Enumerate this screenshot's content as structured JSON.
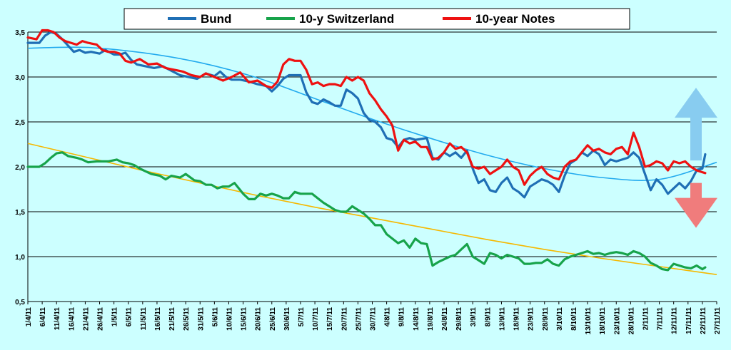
{
  "colors": {
    "background": "#CCFFFF",
    "bund": "#1F6FB5",
    "switzerland": "#17A34A",
    "notes": "#EE1111",
    "trend_bund": "#22AAEE",
    "trend_switzerland": "#F5B800",
    "arrow_up": "#88CCF0",
    "arrow_down": "#F07C7C",
    "grid": "#000000"
  },
  "chart_data": {
    "type": "line",
    "title": "",
    "xlabel": "",
    "ylabel": "",
    "ylim": [
      0.5,
      3.5
    ],
    "xlim": [
      "2011-04-01",
      "2011-11-27"
    ],
    "yticks": [
      "0,5",
      "1,0",
      "1,5",
      "2,0",
      "2,5",
      "3,0",
      "3,5"
    ],
    "ytick_values": [
      0.5,
      1.0,
      1.5,
      2.0,
      2.5,
      3.0,
      3.5
    ],
    "xtick_labels": [
      "1/4/11",
      "6/4/11",
      "11/4/11",
      "16/4/11",
      "21/4/11",
      "26/4/11",
      "1/5/11",
      "6/5/11",
      "11/5/11",
      "16/5/11",
      "21/5/11",
      "26/5/11",
      "31/5/11",
      "5/6/11",
      "10/6/11",
      "15/6/11",
      "20/6/11",
      "25/6/11",
      "30/6/11",
      "5/7/11",
      "10/7/11",
      "15/7/11",
      "20/7/11",
      "25/7/11",
      "30/7/11",
      "4/8/11",
      "9/8/11",
      "14/8/11",
      "19/8/11",
      "24/8/11",
      "29/8/11",
      "3/9/11",
      "8/9/11",
      "13/9/11",
      "18/9/11",
      "23/9/11",
      "28/9/11",
      "3/10/11",
      "8/10/11",
      "13/10/11",
      "18/10/11",
      "23/10/11",
      "28/10/11",
      "2/11/11",
      "7/11/11",
      "12/11/11",
      "17/11/11",
      "22/11/11",
      "27/11/11"
    ],
    "xtick_dates": [
      "2011-04-01",
      "2011-04-06",
      "2011-04-11",
      "2011-04-16",
      "2011-04-21",
      "2011-04-26",
      "2011-05-01",
      "2011-05-06",
      "2011-05-11",
      "2011-05-16",
      "2011-05-21",
      "2011-05-26",
      "2011-05-31",
      "2011-06-05",
      "2011-06-10",
      "2011-06-15",
      "2011-06-20",
      "2011-06-25",
      "2011-06-30",
      "2011-07-05",
      "2011-07-10",
      "2011-07-15",
      "2011-07-20",
      "2011-07-25",
      "2011-07-30",
      "2011-08-04",
      "2011-08-09",
      "2011-08-14",
      "2011-08-19",
      "2011-08-24",
      "2011-08-29",
      "2011-09-03",
      "2011-09-08",
      "2011-09-13",
      "2011-09-18",
      "2011-09-23",
      "2011-09-28",
      "2011-10-03",
      "2011-10-08",
      "2011-10-13",
      "2011-10-18",
      "2011-10-23",
      "2011-10-28",
      "2011-11-02",
      "2011-11-07",
      "2011-11-12",
      "2011-11-17",
      "2011-11-22",
      "2011-11-27"
    ],
    "grid": "horizontal",
    "legend_position": "top-center",
    "series": [
      {
        "name": "Bund",
        "color": "#1F6FB5",
        "x": [
          "2011-04-01",
          "2011-04-05",
          "2011-04-07",
          "2011-04-09",
          "2011-04-11",
          "2011-04-13",
          "2011-04-15",
          "2011-04-17",
          "2011-04-19",
          "2011-04-21",
          "2011-04-23",
          "2011-04-26",
          "2011-04-28",
          "2011-05-01",
          "2011-05-03",
          "2011-05-05",
          "2011-05-07",
          "2011-05-09",
          "2011-05-12",
          "2011-05-15",
          "2011-05-18",
          "2011-05-21",
          "2011-05-24",
          "2011-05-27",
          "2011-05-30",
          "2011-06-02",
          "2011-06-05",
          "2011-06-07",
          "2011-06-09",
          "2011-06-11",
          "2011-06-14",
          "2011-06-17",
          "2011-06-20",
          "2011-06-23",
          "2011-06-25",
          "2011-06-27",
          "2011-06-29",
          "2011-07-01",
          "2011-07-03",
          "2011-07-05",
          "2011-07-07",
          "2011-07-09",
          "2011-07-11",
          "2011-07-13",
          "2011-07-15",
          "2011-07-17",
          "2011-07-19",
          "2011-07-21",
          "2011-07-23",
          "2011-07-25",
          "2011-07-27",
          "2011-07-29",
          "2011-07-31",
          "2011-08-02",
          "2011-08-04",
          "2011-08-06",
          "2011-08-08",
          "2011-08-10",
          "2011-08-12",
          "2011-08-14",
          "2011-08-16",
          "2011-08-18",
          "2011-08-20",
          "2011-08-22",
          "2011-08-24",
          "2011-08-26",
          "2011-08-28",
          "2011-08-30",
          "2011-09-01",
          "2011-09-03",
          "2011-09-05",
          "2011-09-07",
          "2011-09-09",
          "2011-09-11",
          "2011-09-13",
          "2011-09-15",
          "2011-09-17",
          "2011-09-19",
          "2011-09-21",
          "2011-09-23",
          "2011-09-25",
          "2011-09-27",
          "2011-09-29",
          "2011-10-01",
          "2011-10-03",
          "2011-10-05",
          "2011-10-07",
          "2011-10-09",
          "2011-10-11",
          "2011-10-13",
          "2011-10-15",
          "2011-10-17",
          "2011-10-19",
          "2011-10-21",
          "2011-10-23",
          "2011-10-25",
          "2011-10-27",
          "2011-10-29",
          "2011-10-31",
          "2011-11-02",
          "2011-11-04",
          "2011-11-06",
          "2011-11-08",
          "2011-11-10",
          "2011-11-12",
          "2011-11-14",
          "2011-11-16",
          "2011-11-18",
          "2011-11-20",
          "2011-11-22",
          "2011-11-23"
        ],
        "values": [
          3.38,
          3.38,
          3.46,
          3.5,
          3.48,
          3.42,
          3.35,
          3.28,
          3.3,
          3.27,
          3.28,
          3.26,
          3.3,
          3.25,
          3.25,
          3.27,
          3.19,
          3.14,
          3.12,
          3.1,
          3.12,
          3.07,
          3.02,
          3.0,
          2.98,
          3.04,
          3.01,
          3.06,
          3.0,
          2.97,
          2.97,
          2.95,
          2.92,
          2.9,
          2.84,
          2.9,
          2.98,
          3.02,
          3.02,
          3.02,
          2.83,
          2.72,
          2.7,
          2.75,
          2.72,
          2.68,
          2.68,
          2.86,
          2.82,
          2.76,
          2.6,
          2.52,
          2.5,
          2.44,
          2.32,
          2.3,
          2.22,
          2.3,
          2.32,
          2.3,
          2.31,
          2.32,
          2.1,
          2.08,
          2.16,
          2.12,
          2.16,
          2.1,
          2.18,
          1.98,
          1.82,
          1.86,
          1.74,
          1.72,
          1.82,
          1.88,
          1.76,
          1.72,
          1.66,
          1.78,
          1.82,
          1.86,
          1.84,
          1.8,
          1.72,
          1.9,
          2.04,
          2.08,
          2.16,
          2.12,
          2.18,
          2.14,
          2.02,
          2.08,
          2.06,
          2.08,
          2.1,
          2.16,
          2.1,
          1.92,
          1.74,
          1.86,
          1.8,
          1.7,
          1.76,
          1.82,
          1.76,
          1.84,
          1.96,
          1.98,
          2.14
        ]
      },
      {
        "name": "10-y Switzerland",
        "color": "#17A34A",
        "x": [
          "2011-04-01",
          "2011-04-05",
          "2011-04-07",
          "2011-04-09",
          "2011-04-11",
          "2011-04-13",
          "2011-04-15",
          "2011-04-18",
          "2011-04-20",
          "2011-04-22",
          "2011-04-25",
          "2011-04-27",
          "2011-04-29",
          "2011-05-02",
          "2011-05-04",
          "2011-05-06",
          "2011-05-08",
          "2011-05-10",
          "2011-05-12",
          "2011-05-14",
          "2011-05-17",
          "2011-05-19",
          "2011-05-21",
          "2011-05-24",
          "2011-05-26",
          "2011-05-29",
          "2011-05-31",
          "2011-06-02",
          "2011-06-04",
          "2011-06-06",
          "2011-06-08",
          "2011-06-10",
          "2011-06-12",
          "2011-06-15",
          "2011-06-17",
          "2011-06-19",
          "2011-06-21",
          "2011-06-23",
          "2011-06-25",
          "2011-06-27",
          "2011-06-29",
          "2011-07-01",
          "2011-07-03",
          "2011-07-05",
          "2011-07-07",
          "2011-07-09",
          "2011-07-11",
          "2011-07-13",
          "2011-07-15",
          "2011-07-17",
          "2011-07-19",
          "2011-07-21",
          "2011-07-23",
          "2011-07-25",
          "2011-07-27",
          "2011-07-29",
          "2011-07-31",
          "2011-08-02",
          "2011-08-04",
          "2011-08-06",
          "2011-08-08",
          "2011-08-10",
          "2011-08-12",
          "2011-08-14",
          "2011-08-16",
          "2011-08-18",
          "2011-08-20",
          "2011-08-22",
          "2011-08-24",
          "2011-08-26",
          "2011-08-28",
          "2011-08-30",
          "2011-09-01",
          "2011-09-03",
          "2011-09-05",
          "2011-09-07",
          "2011-09-09",
          "2011-09-11",
          "2011-09-13",
          "2011-09-15",
          "2011-09-17",
          "2011-09-19",
          "2011-09-21",
          "2011-09-23",
          "2011-09-25",
          "2011-09-27",
          "2011-09-29",
          "2011-10-01",
          "2011-10-03",
          "2011-10-05",
          "2011-10-07",
          "2011-10-09",
          "2011-10-11",
          "2011-10-13",
          "2011-10-15",
          "2011-10-17",
          "2011-10-19",
          "2011-10-21",
          "2011-10-23",
          "2011-10-25",
          "2011-10-27",
          "2011-10-29",
          "2011-10-31",
          "2011-11-02",
          "2011-11-04",
          "2011-11-06",
          "2011-11-08",
          "2011-11-10",
          "2011-11-12",
          "2011-11-14",
          "2011-11-16",
          "2011-11-18",
          "2011-11-20",
          "2011-11-22",
          "2011-11-23"
        ],
        "values": [
          2.0,
          2.0,
          2.04,
          2.1,
          2.15,
          2.16,
          2.12,
          2.1,
          2.08,
          2.05,
          2.06,
          2.06,
          2.06,
          2.08,
          2.05,
          2.04,
          2.02,
          1.98,
          1.95,
          1.92,
          1.9,
          1.86,
          1.9,
          1.88,
          1.92,
          1.85,
          1.84,
          1.8,
          1.8,
          1.76,
          1.78,
          1.78,
          1.82,
          1.7,
          1.64,
          1.64,
          1.7,
          1.68,
          1.7,
          1.68,
          1.65,
          1.65,
          1.72,
          1.7,
          1.7,
          1.7,
          1.65,
          1.6,
          1.56,
          1.52,
          1.5,
          1.5,
          1.56,
          1.52,
          1.48,
          1.42,
          1.35,
          1.35,
          1.25,
          1.2,
          1.15,
          1.18,
          1.1,
          1.2,
          1.15,
          1.14,
          0.9,
          0.94,
          0.97,
          1.0,
          1.02,
          1.08,
          1.14,
          1.0,
          0.96,
          0.92,
          1.04,
          1.02,
          0.98,
          1.02,
          1.0,
          0.98,
          0.92,
          0.92,
          0.93,
          0.93,
          0.97,
          0.92,
          0.9,
          0.97,
          1.0,
          1.02,
          1.04,
          1.06,
          1.03,
          1.04,
          1.02,
          1.04,
          1.05,
          1.04,
          1.02,
          1.06,
          1.04,
          1.0,
          0.93,
          0.9,
          0.86,
          0.85,
          0.92,
          0.9,
          0.88,
          0.87,
          0.9,
          0.86,
          0.88
        ]
      },
      {
        "name": "10-year Notes",
        "color": "#EE1111",
        "x": [
          "2011-04-01",
          "2011-04-04",
          "2011-04-06",
          "2011-04-08",
          "2011-04-10",
          "2011-04-12",
          "2011-04-14",
          "2011-04-16",
          "2011-04-18",
          "2011-04-20",
          "2011-04-22",
          "2011-04-25",
          "2011-04-27",
          "2011-04-29",
          "2011-05-01",
          "2011-05-03",
          "2011-05-05",
          "2011-05-07",
          "2011-05-10",
          "2011-05-13",
          "2011-05-16",
          "2011-05-19",
          "2011-05-22",
          "2011-05-25",
          "2011-05-28",
          "2011-05-31",
          "2011-06-02",
          "2011-06-05",
          "2011-06-08",
          "2011-06-11",
          "2011-06-14",
          "2011-06-17",
          "2011-06-20",
          "2011-06-23",
          "2011-06-25",
          "2011-06-27",
          "2011-06-29",
          "2011-07-01",
          "2011-07-03",
          "2011-07-05",
          "2011-07-07",
          "2011-07-09",
          "2011-07-11",
          "2011-07-13",
          "2011-07-15",
          "2011-07-17",
          "2011-07-19",
          "2011-07-21",
          "2011-07-23",
          "2011-07-25",
          "2011-07-27",
          "2011-07-29",
          "2011-07-31",
          "2011-08-02",
          "2011-08-04",
          "2011-08-06",
          "2011-08-08",
          "2011-08-10",
          "2011-08-12",
          "2011-08-14",
          "2011-08-16",
          "2011-08-18",
          "2011-08-20",
          "2011-08-22",
          "2011-08-24",
          "2011-08-26",
          "2011-08-28",
          "2011-08-30",
          "2011-09-01",
          "2011-09-03",
          "2011-09-05",
          "2011-09-07",
          "2011-09-09",
          "2011-09-11",
          "2011-09-13",
          "2011-09-15",
          "2011-09-17",
          "2011-09-19",
          "2011-09-21",
          "2011-09-23",
          "2011-09-25",
          "2011-09-27",
          "2011-09-29",
          "2011-10-01",
          "2011-10-03",
          "2011-10-05",
          "2011-10-07",
          "2011-10-09",
          "2011-10-11",
          "2011-10-13",
          "2011-10-15",
          "2011-10-17",
          "2011-10-19",
          "2011-10-21",
          "2011-10-23",
          "2011-10-25",
          "2011-10-27",
          "2011-10-29",
          "2011-10-31",
          "2011-11-02",
          "2011-11-04",
          "2011-11-06",
          "2011-11-08",
          "2011-11-10",
          "2011-11-12",
          "2011-11-14",
          "2011-11-16",
          "2011-11-18",
          "2011-11-20",
          "2011-11-22",
          "2011-11-23"
        ],
        "values": [
          3.44,
          3.42,
          3.52,
          3.52,
          3.5,
          3.44,
          3.4,
          3.38,
          3.36,
          3.4,
          3.38,
          3.36,
          3.3,
          3.28,
          3.28,
          3.26,
          3.18,
          3.16,
          3.2,
          3.14,
          3.15,
          3.1,
          3.08,
          3.06,
          3.02,
          3.0,
          3.04,
          3.0,
          2.96,
          3.0,
          3.05,
          2.94,
          2.96,
          2.9,
          2.88,
          2.95,
          3.14,
          3.2,
          3.18,
          3.18,
          3.08,
          2.92,
          2.94,
          2.9,
          2.92,
          2.92,
          2.9,
          3.0,
          2.96,
          3.0,
          2.96,
          2.82,
          2.74,
          2.64,
          2.56,
          2.46,
          2.18,
          2.3,
          2.26,
          2.28,
          2.22,
          2.22,
          2.08,
          2.1,
          2.16,
          2.26,
          2.2,
          2.22,
          2.16,
          2.0,
          1.98,
          2.0,
          1.92,
          1.96,
          2.0,
          2.08,
          2.0,
          1.96,
          1.8,
          1.9,
          1.96,
          2.0,
          1.92,
          1.88,
          1.86,
          2.0,
          2.06,
          2.08,
          2.16,
          2.24,
          2.18,
          2.2,
          2.16,
          2.14,
          2.2,
          2.22,
          2.14,
          2.38,
          2.22,
          2.0,
          2.02,
          2.06,
          2.04,
          1.96,
          2.06,
          2.04,
          2.06,
          2.0,
          1.96,
          1.94,
          1.93
        ]
      }
    ],
    "trendlines": [
      {
        "of": "Bund",
        "color": "#22AAEE",
        "x": [
          "2011-04-01",
          "2011-04-21",
          "2011-05-11",
          "2011-05-31",
          "2011-06-20",
          "2011-07-10",
          "2011-07-30",
          "2011-08-19",
          "2011-09-08",
          "2011-09-28",
          "2011-10-18",
          "2011-11-07",
          "2011-11-27"
        ],
        "values": [
          3.32,
          3.33,
          3.27,
          3.16,
          2.99,
          2.76,
          2.53,
          2.32,
          2.13,
          1.98,
          1.88,
          1.86,
          2.05
        ]
      },
      {
        "of": "10-y Switzerland",
        "color": "#F5B800",
        "x": [
          "2011-04-01",
          "2011-04-21",
          "2011-05-11",
          "2011-05-31",
          "2011-06-20",
          "2011-07-10",
          "2011-07-30",
          "2011-08-19",
          "2011-09-08",
          "2011-09-28",
          "2011-10-18",
          "2011-11-07",
          "2011-11-27"
        ],
        "values": [
          2.26,
          2.11,
          1.96,
          1.82,
          1.68,
          1.55,
          1.43,
          1.31,
          1.19,
          1.08,
          0.98,
          0.89,
          0.8
        ]
      }
    ],
    "annotations": [
      {
        "type": "arrow-up",
        "color": "#88CCF0",
        "x": "2011-11-27",
        "from": 2.07,
        "to": 2.88
      },
      {
        "type": "arrow-down",
        "color": "#F07C7C",
        "x": "2011-11-27",
        "from": 1.82,
        "to": 1.32
      }
    ]
  }
}
